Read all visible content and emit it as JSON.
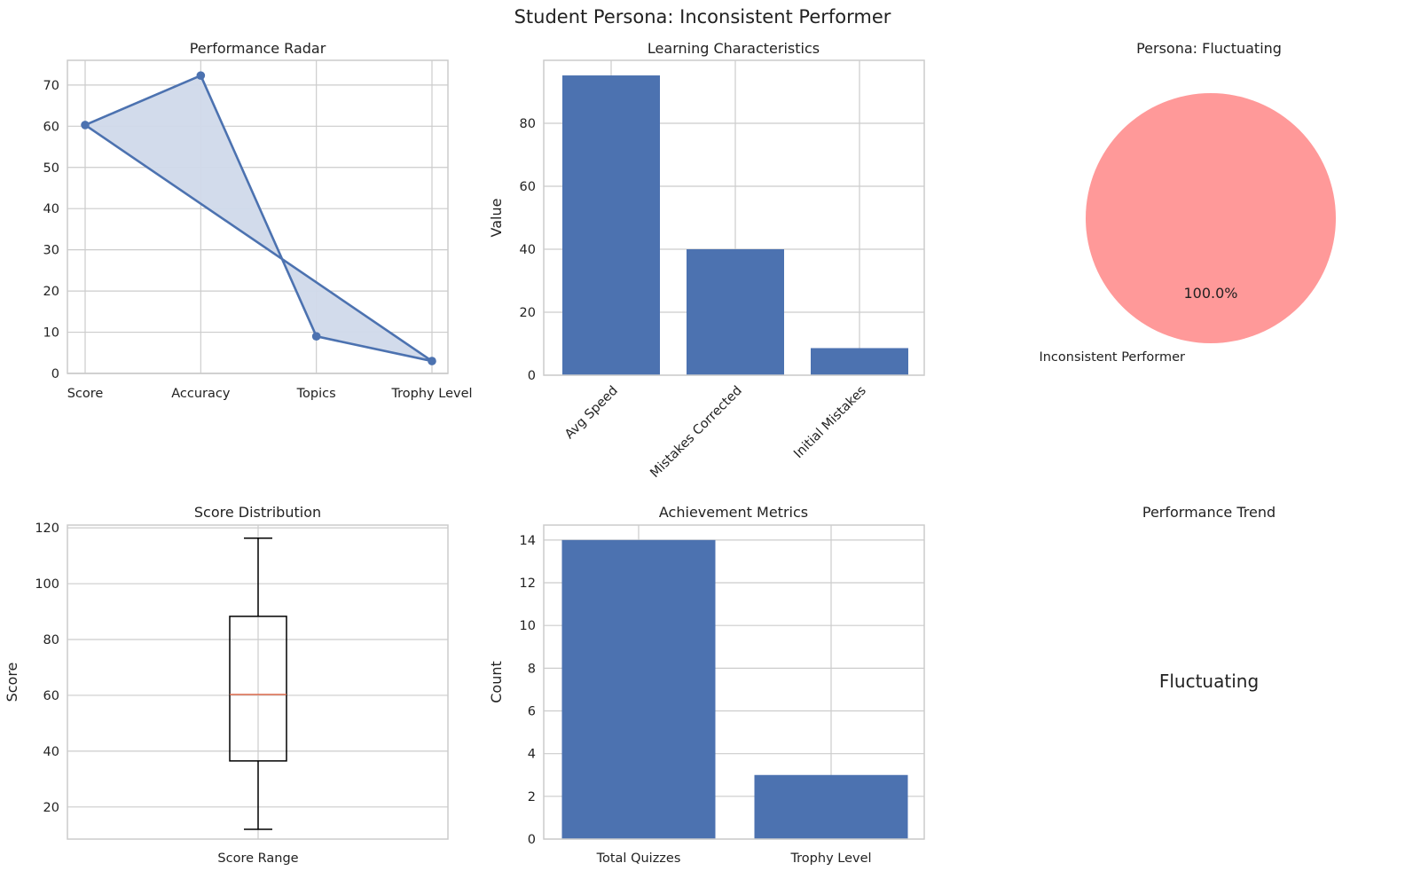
{
  "title": "Student Persona: Inconsistent Performer",
  "colors": {
    "bar": "#4c72b0",
    "radar_fill": "#d0d9ea",
    "pie": "#ff9999",
    "median": "#dd6b4d",
    "box": "#000000"
  },
  "chart_data": [
    {
      "id": "radar",
      "type": "line",
      "title": "Performance Radar",
      "categories": [
        "Score",
        "Accuracy",
        "Topics",
        "Trophy Level"
      ],
      "values": [
        60.3,
        72.3,
        9,
        3
      ],
      "closed": true,
      "filled": true,
      "ylim": [
        0,
        76
      ],
      "yticks": [
        0,
        10,
        20,
        30,
        40,
        50,
        60,
        70
      ],
      "grid": true
    },
    {
      "id": "learning",
      "type": "bar",
      "title": "Learning Characteristics",
      "categories": [
        "Avg Speed",
        "Mistakes Corrected",
        "Initial Mistakes"
      ],
      "values": [
        95.2,
        40,
        8.6
      ],
      "ylabel": "Value",
      "ylim": [
        0,
        100
      ],
      "yticks": [
        0,
        20,
        40,
        60,
        80
      ],
      "xtick_rotation": 45,
      "grid": true
    },
    {
      "id": "persona",
      "type": "pie",
      "title": "Persona: Fluctuating",
      "labels": [
        "Inconsistent Performer"
      ],
      "values": [
        100
      ],
      "pct_label": "100.0%"
    },
    {
      "id": "score_dist",
      "type": "box",
      "title": "Score Distribution",
      "category": "Score Range",
      "ylabel": "Score",
      "whisker_low": 12,
      "q1": 36.5,
      "median": 60.3,
      "q3": 88.3,
      "whisker_high": 116.3,
      "ylim": [
        8.5,
        121
      ],
      "yticks": [
        20,
        40,
        60,
        80,
        100,
        120
      ],
      "grid": true
    },
    {
      "id": "achievement",
      "type": "bar",
      "title": "Achievement Metrics",
      "categories": [
        "Total Quizzes",
        "Trophy Level"
      ],
      "values": [
        14,
        3
      ],
      "ylabel": "Count",
      "ylim": [
        0,
        14.7
      ],
      "yticks": [
        0,
        2,
        4,
        6,
        8,
        10,
        12,
        14
      ],
      "grid": true
    },
    {
      "id": "trend",
      "type": "text",
      "title": "Performance Trend",
      "text": "Fluctuating"
    }
  ]
}
